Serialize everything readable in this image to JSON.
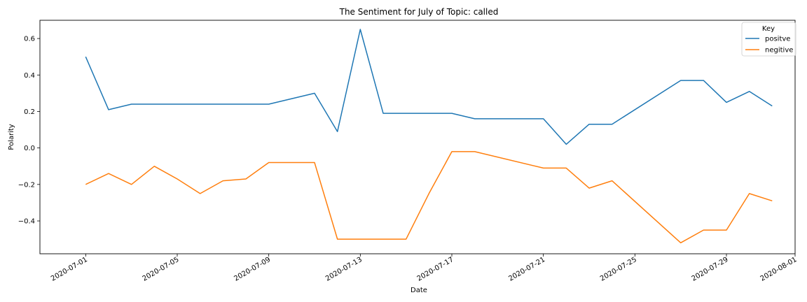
{
  "chart_data": {
    "type": "line",
    "title": "The Sentiment for July of Topic: called",
    "xlabel": "Date",
    "ylabel": "Polarity",
    "xlim": [
      "2020-06-29",
      "2020-08-01"
    ],
    "ylim": [
      -0.58,
      0.7
    ],
    "x_ticks": [
      "2020-07-01",
      "2020-07-05",
      "2020-07-09",
      "2020-07-13",
      "2020-07-17",
      "2020-07-21",
      "2020-07-25",
      "2020-07-29",
      "2020-08-01"
    ],
    "y_ticks": [
      -0.4,
      -0.2,
      0.0,
      0.2,
      0.4,
      0.6
    ],
    "y_tick_labels": [
      "−0.4",
      "−0.2",
      "0.0",
      "0.2",
      "0.4",
      "0.6"
    ],
    "grid": false,
    "legend": {
      "title": "Key",
      "position": "top-right"
    },
    "x": [
      "2020-07-01",
      "2020-07-02",
      "2020-07-03",
      "2020-07-04",
      "2020-07-05",
      "2020-07-06",
      "2020-07-07",
      "2020-07-08",
      "2020-07-09",
      "2020-07-11",
      "2020-07-12",
      "2020-07-13",
      "2020-07-14",
      "2020-07-15",
      "2020-07-16",
      "2020-07-17",
      "2020-07-18",
      "2020-07-21",
      "2020-07-22",
      "2020-07-23",
      "2020-07-24",
      "2020-07-27",
      "2020-07-28",
      "2020-07-29",
      "2020-07-30",
      "2020-07-31"
    ],
    "series": [
      {
        "name": "positve",
        "color": "#1f77b4",
        "values": [
          0.5,
          0.21,
          0.24,
          0.24,
          0.24,
          0.24,
          0.24,
          0.24,
          0.24,
          0.3,
          0.09,
          0.65,
          0.19,
          0.19,
          0.19,
          0.19,
          0.16,
          0.16,
          0.02,
          0.13,
          0.13,
          0.37,
          0.37,
          0.25,
          0.31,
          0.23
        ]
      },
      {
        "name": "negitive",
        "color": "#ff7f0e",
        "values": [
          -0.2,
          -0.14,
          -0.2,
          -0.1,
          -0.17,
          -0.25,
          -0.18,
          -0.17,
          -0.08,
          -0.08,
          -0.5,
          -0.5,
          -0.5,
          -0.5,
          -0.25,
          -0.02,
          -0.02,
          -0.11,
          -0.11,
          -0.22,
          -0.18,
          -0.52,
          -0.45,
          -0.45,
          -0.25,
          -0.29
        ]
      }
    ]
  }
}
